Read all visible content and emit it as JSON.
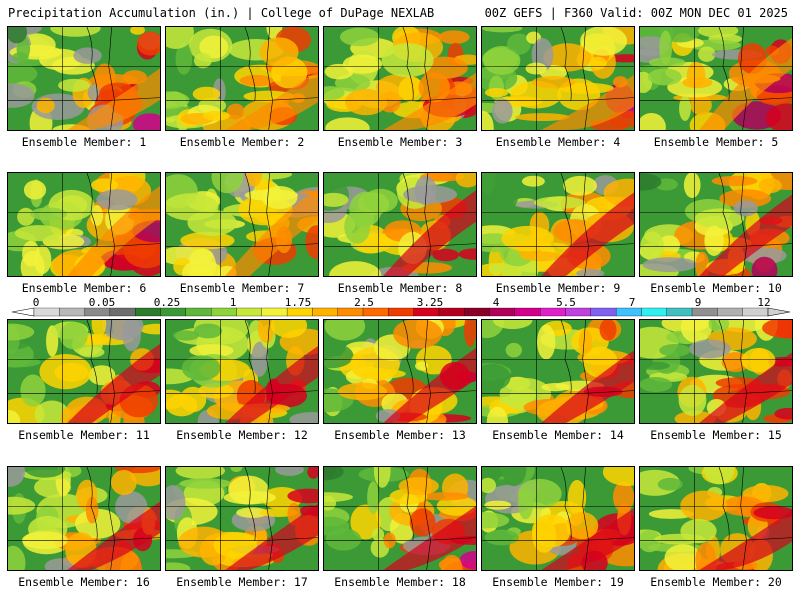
{
  "header": {
    "left_title": "Precipitation Accumulation (in.) | College of DuPage NEXLAB",
    "right_title": "00Z GEFS | F360 Valid: 00Z MON DEC 01 2025"
  },
  "members": [
    {
      "label": "Ensemble Member: 1"
    },
    {
      "label": "Ensemble Member: 2"
    },
    {
      "label": "Ensemble Member: 3"
    },
    {
      "label": "Ensemble Member: 4"
    },
    {
      "label": "Ensemble Member: 5"
    },
    {
      "label": "Ensemble Member: 6"
    },
    {
      "label": "Ensemble Member: 7"
    },
    {
      "label": "Ensemble Member: 8"
    },
    {
      "label": "Ensemble Member: 9"
    },
    {
      "label": "Ensemble Member: 10"
    },
    {
      "label": "Ensemble Member: 11"
    },
    {
      "label": "Ensemble Member: 12"
    },
    {
      "label": "Ensemble Member: 13"
    },
    {
      "label": "Ensemble Member: 14"
    },
    {
      "label": "Ensemble Member: 15"
    },
    {
      "label": "Ensemble Member: 16"
    },
    {
      "label": "Ensemble Member: 17"
    },
    {
      "label": "Ensemble Member: 18"
    },
    {
      "label": "Ensemble Member: 19"
    },
    {
      "label": "Ensemble Member: 20"
    }
  ],
  "legend": {
    "tick_labels": [
      "0",
      "0.05",
      "0.25",
      "1",
      "1.75",
      "2.5",
      "3.25",
      "4",
      "5.5",
      "7",
      "9",
      "12"
    ],
    "colors": [
      "#d9d9d9",
      "#b8b8b8",
      "#8a8a8a",
      "#6e6e6e",
      "#2d7b2d",
      "#3c9a36",
      "#5fb83b",
      "#8ed23c",
      "#c7e83a",
      "#f2f23a",
      "#ffd400",
      "#ffb300",
      "#ff8c00",
      "#ff6a00",
      "#f03c00",
      "#d7001e",
      "#b4001e",
      "#8c0028",
      "#b0005a",
      "#d4008c",
      "#e020c8",
      "#c040e0",
      "#8060f0",
      "#40c0ff",
      "#30f0f0",
      "#40c0c0",
      "#909090",
      "#b0b0b0",
      "#d0d0d0"
    ]
  }
}
